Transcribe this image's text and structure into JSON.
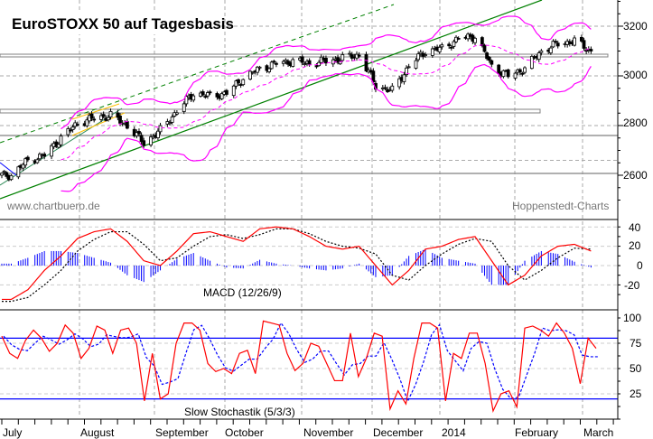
{
  "chart_data": [
    {
      "type": "candlestick",
      "title": "EuroSTOXX 50 auf Tagesbasis",
      "watermark_left": "www.chartbuero.de",
      "watermark_right": "Hoppenstedt-Charts",
      "y_ticks": [
        "3200",
        "3000",
        "2800",
        "2600"
      ],
      "ylim": [
        2480,
        3310
      ],
      "x_tick_labels": [
        "July",
        "August",
        "September",
        "October",
        "November",
        "December",
        "2014",
        "February",
        "March"
      ],
      "dates": [
        "2013-07-05",
        "2013-07-12",
        "2013-07-19",
        "2013-07-26",
        "2013-08-02",
        "2013-08-09",
        "2013-08-16",
        "2013-08-23",
        "2013-08-30",
        "2013-09-06",
        "2013-09-13",
        "2013-09-20",
        "2013-09-27",
        "2013-10-04",
        "2013-10-11",
        "2013-10-18",
        "2013-10-25",
        "2013-11-01",
        "2013-11-08",
        "2013-11-15",
        "2013-11-22",
        "2013-11-29",
        "2013-12-06",
        "2013-12-13",
        "2013-12-20",
        "2013-12-27",
        "2014-01-03",
        "2014-01-10",
        "2014-01-17",
        "2014-01-24",
        "2014-01-31",
        "2014-02-07",
        "2014-02-14",
        "2014-02-21",
        "2014-02-28",
        "2014-03-07"
      ],
      "weekly_close": [
        2600,
        2660,
        2680,
        2750,
        2810,
        2830,
        2840,
        2800,
        2730,
        2780,
        2860,
        2930,
        2920,
        2930,
        2990,
        3030,
        3050,
        3060,
        3050,
        3060,
        3070,
        3085,
        2960,
        2940,
        3040,
        3100,
        3110,
        3150,
        3160,
        3040,
        3000,
        3030,
        3100,
        3130,
        3140,
        3100
      ],
      "overlays": [
        "Bollinger Bands (20)",
        "trend lines",
        "support/resistance lines"
      ],
      "colors": {
        "bollinger": "#ff00ff",
        "trend": "#008000",
        "support": "#808080"
      }
    },
    {
      "type": "line",
      "label": "MACD (12/26/9)",
      "y_ticks": [
        "40",
        "20",
        "0",
        "-20"
      ],
      "macd": [
        -35,
        -25,
        -5,
        10,
        28,
        35,
        38,
        25,
        5,
        0,
        15,
        33,
        35,
        30,
        25,
        38,
        40,
        38,
        30,
        20,
        17,
        20,
        0,
        -20,
        -5,
        17,
        20,
        27,
        30,
        5,
        -20,
        -10,
        10,
        20,
        22,
        15
      ],
      "signal": [
        -37,
        -33,
        -20,
        -5,
        15,
        27,
        35,
        35,
        22,
        5,
        8,
        20,
        30,
        32,
        28,
        32,
        38,
        38,
        33,
        25,
        20,
        18,
        12,
        -10,
        -15,
        0,
        12,
        22,
        28,
        25,
        0,
        -15,
        -5,
        8,
        18,
        17
      ],
      "colors": {
        "macd": "#ff0000",
        "signal": "#000000",
        "histogram": "#0000ff"
      }
    },
    {
      "type": "line",
      "label": "Slow Stochastik (5/3/3)",
      "y_ticks": [
        "100",
        "75",
        "50",
        "25"
      ],
      "levels": [
        80,
        20
      ],
      "k": [
        82,
        65,
        60,
        78,
        88,
        80,
        67,
        75,
        93,
        85,
        60,
        70,
        92,
        88,
        65,
        88,
        90,
        75,
        18,
        65,
        20,
        25,
        75,
        95,
        95,
        88,
        55,
        47,
        50,
        45,
        65,
        68,
        45,
        97,
        95,
        93,
        65,
        48,
        55,
        75,
        72,
        55,
        38,
        38,
        85,
        42,
        60,
        85,
        82,
        10,
        28,
        15,
        60,
        95,
        95,
        90,
        18,
        65,
        60,
        85,
        85,
        55,
        8,
        25,
        28,
        12,
        90,
        92,
        88,
        82,
        95,
        85,
        70,
        35,
        80,
        70
      ],
      "colors": {
        "k": "#ff0000",
        "d": "#0000ff",
        "levels": "#0000ff"
      }
    }
  ]
}
